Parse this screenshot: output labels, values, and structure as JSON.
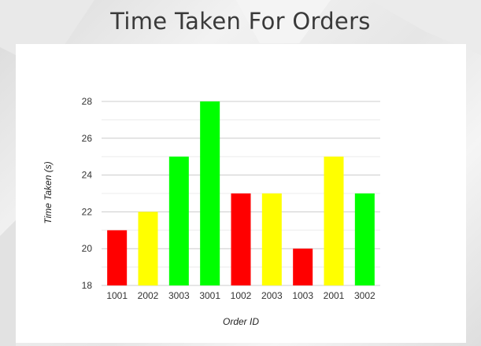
{
  "page": {
    "title": "Time Taken For Orders"
  },
  "chart_data": {
    "type": "bar",
    "title": "Time Taken For Orders",
    "xlabel": "Order ID",
    "ylabel": "Time Taken (s)",
    "categories": [
      "1001",
      "2002",
      "3003",
      "3001",
      "1002",
      "2003",
      "1003",
      "2001",
      "3002"
    ],
    "values": [
      21,
      22,
      25,
      28,
      23,
      23,
      20,
      25,
      23
    ],
    "bar_colors": [
      "#ff0000",
      "#ffff00",
      "#00ff00",
      "#00ff00",
      "#ff0000",
      "#ffff00",
      "#ff0000",
      "#ffff00",
      "#00ff00"
    ],
    "ylim": [
      18,
      28
    ],
    "yticks": [
      18,
      20,
      22,
      24,
      26,
      28
    ],
    "grid": true,
    "legend": "none"
  }
}
